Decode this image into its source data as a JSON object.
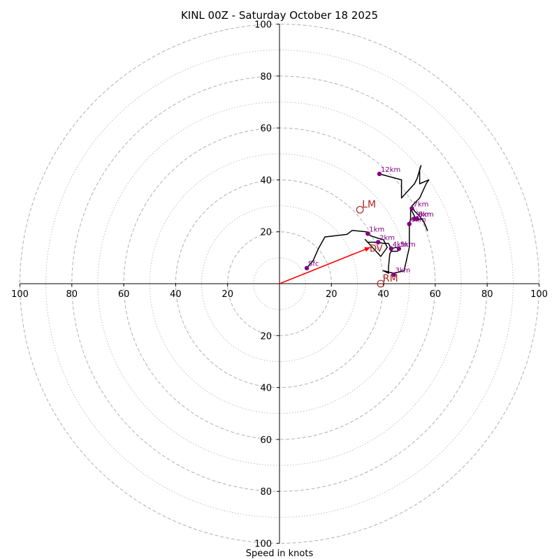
{
  "chart_data": {
    "type": "hodograph",
    "title": "KINL 00Z - Saturday October 18 2025",
    "xlabel": "Speed in knots",
    "axis_range": [
      -100,
      100
    ],
    "axis_ticks": [
      {
        "value": -100,
        "label": "100"
      },
      {
        "value": -80,
        "label": "80"
      },
      {
        "value": -60,
        "label": "60"
      },
      {
        "value": -40,
        "label": "40"
      },
      {
        "value": -20,
        "label": "20"
      },
      {
        "value": 20,
        "label": "20"
      },
      {
        "value": 40,
        "label": "40"
      },
      {
        "value": 60,
        "label": "60"
      },
      {
        "value": 80,
        "label": "80"
      },
      {
        "value": 100,
        "label": "100"
      }
    ],
    "rings_major": [
      20,
      40,
      60,
      80,
      100
    ],
    "rings_minor": [
      10,
      30,
      50,
      70,
      90
    ],
    "trace": [
      [
        10.5,
        6.0
      ],
      [
        13,
        9
      ],
      [
        15,
        13.5
      ],
      [
        17.5,
        18
      ],
      [
        26,
        19
      ],
      [
        28,
        20.5
      ],
      [
        33.5,
        20
      ],
      [
        34,
        19.3
      ],
      [
        35,
        18.5
      ],
      [
        38,
        17.5
      ],
      [
        40,
        17
      ],
      [
        41.5,
        14
      ],
      [
        39,
        10.5
      ],
      [
        33,
        17
      ],
      [
        34,
        16
      ],
      [
        38,
        16
      ],
      [
        40,
        15.5
      ],
      [
        42,
        15.5
      ],
      [
        43,
        13.5
      ],
      [
        45,
        14
      ],
      [
        46,
        13.5
      ],
      [
        45.5,
        12.5
      ],
      [
        43,
        12.5
      ],
      [
        42.5,
        11.5
      ],
      [
        42,
        6.5
      ],
      [
        42,
        4
      ],
      [
        40,
        5
      ],
      [
        44,
        4
      ],
      [
        48,
        5
      ],
      [
        50,
        14
      ],
      [
        50,
        23
      ],
      [
        50.5,
        25
      ],
      [
        50.5,
        29
      ],
      [
        52,
        26
      ],
      [
        53,
        24.5
      ],
      [
        55,
        25
      ],
      [
        56,
        23
      ],
      [
        57,
        20.5
      ],
      [
        55.5,
        24
      ],
      [
        54,
        26
      ],
      [
        52,
        28
      ],
      [
        51,
        30
      ],
      [
        54,
        33
      ],
      [
        56.5,
        38.5
      ],
      [
        57.5,
        40
      ],
      [
        54,
        38.5
      ],
      [
        54,
        43
      ],
      [
        54,
        44
      ],
      [
        54.5,
        45.5
      ],
      [
        53,
        40.5
      ],
      [
        52,
        38.5
      ],
      [
        47,
        33
      ],
      [
        47,
        40
      ],
      [
        38.5,
        42.3
      ]
    ],
    "height_markers": [
      {
        "label": "Sfc",
        "u": 10.5,
        "v": 6.0
      },
      {
        "label": "1km",
        "u": 34,
        "v": 19.3
      },
      {
        "label": "2km",
        "u": 38,
        "v": 16
      },
      {
        "label": "3km",
        "u": 44,
        "v": 3.5
      },
      {
        "label": "4km",
        "u": 43,
        "v": 13.5
      },
      {
        "label": "5km",
        "u": 46,
        "v": 13.5
      },
      {
        "label": "6km",
        "u": 50,
        "v": 23
      },
      {
        "label": "7km",
        "u": 51,
        "v": 29
      },
      {
        "label": "8km",
        "u": 53,
        "v": 25
      },
      {
        "label": "9km",
        "u": 52,
        "v": 25
      },
      {
        "label": "12km",
        "u": 38.5,
        "v": 42.3
      }
    ],
    "storm_motion": [
      {
        "label": "LM",
        "u": 31,
        "v": 28.5
      },
      {
        "label": "RM",
        "u": 39,
        "v": 0
      }
    ],
    "mean_wind": {
      "label": "DV",
      "u": 35,
      "v": 14
    },
    "colors": {
      "trace": "#000000",
      "markers": "#800080",
      "storm": "#b22222",
      "arrow": "#ff0000",
      "grid": "#b0b0b0",
      "axis": "#000000"
    }
  }
}
